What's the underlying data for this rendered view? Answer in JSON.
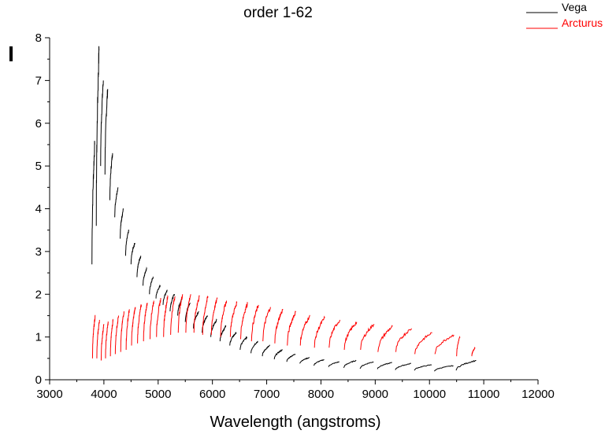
{
  "chart_data": {
    "type": "line",
    "title": "order 1-62",
    "xlabel": "Wavelength (angstroms)",
    "ylabel": "I",
    "xlim": [
      3000,
      12000
    ],
    "ylim": [
      0,
      8
    ],
    "xticks": [
      "3000",
      "4000",
      "5000",
      "6000",
      "7000",
      "8000",
      "9000",
      "10000",
      "11000",
      "12000"
    ],
    "yticks": [
      "0",
      "1",
      "2",
      "3",
      "4",
      "5",
      "6",
      "7",
      "8"
    ],
    "grid": false,
    "legend_position": "top-right",
    "series": [
      {
        "name": "Vega",
        "color": "#000000",
        "orders_start_wavelength": [
          3780,
          3860,
          3940,
          4020,
          4110,
          4200,
          4300,
          4400,
          4500,
          4610,
          4720,
          4840,
          4960,
          5090,
          5220,
          5360,
          5500,
          5650,
          5810,
          5970,
          6140,
          6320,
          6510,
          6710,
          6920,
          7140,
          7370,
          7610,
          7870,
          8140,
          8420,
          8720,
          9040,
          9370,
          9720,
          10090,
          10490
        ],
        "orders_end_wavelength": [
          3830,
          3910,
          3990,
          4070,
          4160,
          4260,
          4360,
          4460,
          4570,
          4680,
          4790,
          4910,
          5040,
          5170,
          5300,
          5440,
          5590,
          5750,
          5910,
          6080,
          6250,
          6440,
          6640,
          6840,
          7060,
          7290,
          7530,
          7790,
          8060,
          8340,
          8650,
          8970,
          9310,
          9660,
          10040,
          10440,
          10860
        ],
        "orders_start_I": [
          2.7,
          3.6,
          5.0,
          4.8,
          4.2,
          3.8,
          3.3,
          2.9,
          2.7,
          2.4,
          2.2,
          2.0,
          1.9,
          1.75,
          1.6,
          1.5,
          1.35,
          1.2,
          1.1,
          1.0,
          0.9,
          0.8,
          0.7,
          0.62,
          0.55,
          0.48,
          0.42,
          0.38,
          0.33,
          0.3,
          0.28,
          0.26,
          0.25,
          0.23,
          0.22,
          0.2,
          0.22
        ],
        "orders_end_I": [
          5.5,
          7.7,
          7.0,
          6.8,
          5.3,
          4.5,
          4.0,
          3.5,
          3.2,
          2.9,
          2.6,
          2.4,
          2.2,
          2.1,
          2.0,
          1.9,
          1.8,
          1.6,
          1.5,
          1.4,
          1.25,
          1.1,
          1.0,
          0.9,
          0.8,
          0.7,
          0.6,
          0.52,
          0.47,
          0.42,
          0.45,
          0.42,
          0.4,
          0.38,
          0.35,
          0.33,
          0.45
        ]
      },
      {
        "name": "Arcturus",
        "color": "#ff0000",
        "orders_start_wavelength": [
          3790,
          3870,
          3950,
          4030,
          4120,
          4210,
          4310,
          4410,
          4510,
          4620,
          4730,
          4850,
          4970,
          5100,
          5230,
          5370,
          5510,
          5660,
          5820,
          5980,
          6150,
          6330,
          6520,
          6720,
          6930,
          7150,
          7380,
          7620,
          7880,
          8150,
          8430,
          8730,
          9050,
          9380,
          9730,
          10100,
          10500,
          10780
        ],
        "orders_end_wavelength": [
          3840,
          3920,
          4000,
          4080,
          4170,
          4270,
          4370,
          4470,
          4580,
          4690,
          4800,
          4920,
          5050,
          5180,
          5310,
          5450,
          5600,
          5760,
          5920,
          6090,
          6260,
          6450,
          6650,
          6850,
          7070,
          7300,
          7540,
          7800,
          8070,
          8350,
          8660,
          8980,
          9320,
          9670,
          10050,
          10450,
          10560,
          10840
        ],
        "orders_start_I": [
          0.5,
          0.5,
          0.45,
          0.5,
          0.55,
          0.6,
          0.65,
          0.7,
          0.8,
          0.85,
          0.9,
          0.95,
          1.0,
          1.0,
          1.05,
          1.1,
          1.1,
          1.1,
          1.05,
          1.05,
          1.0,
          1.0,
          0.95,
          0.9,
          0.9,
          0.85,
          0.8,
          0.8,
          0.75,
          0.75,
          0.7,
          0.7,
          0.65,
          0.65,
          0.6,
          0.6,
          0.55,
          0.55
        ],
        "orders_end_I": [
          1.5,
          1.4,
          1.3,
          1.35,
          1.4,
          1.5,
          1.6,
          1.65,
          1.7,
          1.75,
          1.8,
          1.85,
          1.9,
          1.95,
          1.95,
          2.0,
          2.0,
          1.95,
          1.95,
          1.9,
          1.85,
          1.8,
          1.8,
          1.75,
          1.7,
          1.65,
          1.6,
          1.5,
          1.45,
          1.4,
          1.35,
          1.3,
          1.25,
          1.2,
          1.1,
          1.05,
          1.0,
          0.75
        ]
      }
    ]
  }
}
